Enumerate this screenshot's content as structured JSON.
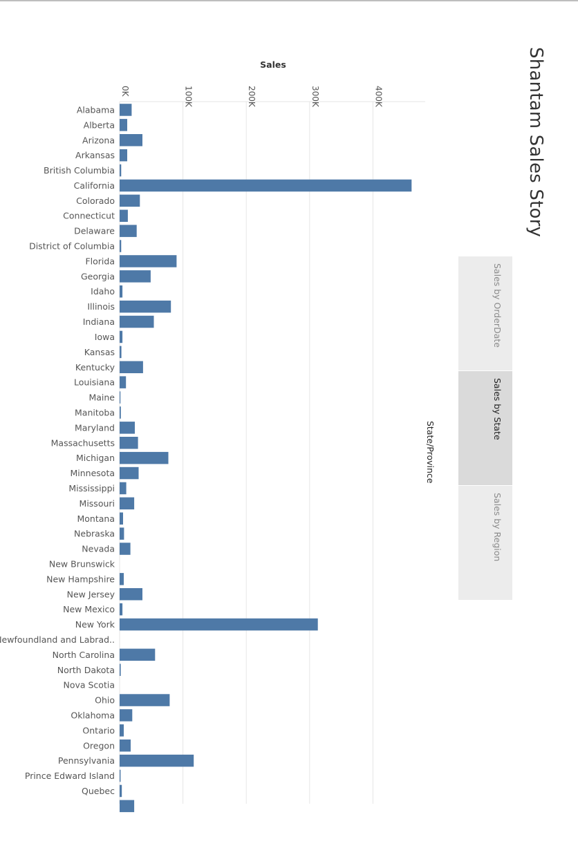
{
  "story": {
    "title": "Shantam Sales Story",
    "tabs": [
      {
        "label": "Sales by OrderDate",
        "active": false
      },
      {
        "label": "Sales by State",
        "active": true
      },
      {
        "label": "Sales by Region",
        "active": false
      }
    ]
  },
  "colors": {
    "bar": "#4e79a7",
    "gridline": "#e6e6e6",
    "text": "#555555"
  },
  "chart_data": {
    "type": "bar",
    "orientation": "horizontal",
    "xlabel": "Sales",
    "ylabel": "State/Province",
    "xlim": [
      0,
      480000
    ],
    "xticks": [
      {
        "value": 0,
        "label": "0K"
      },
      {
        "value": 100000,
        "label": "100K"
      },
      {
        "value": 200000,
        "label": "200K"
      },
      {
        "value": 300000,
        "label": "300K"
      },
      {
        "value": 400000,
        "label": "400K"
      }
    ],
    "grid": true,
    "categories": [
      "Alabama",
      "Alberta",
      "Arizona",
      "Arkansas",
      "British Columbia",
      "California",
      "Colorado",
      "Connecticut",
      "Delaware",
      "District of Columbia",
      "Florida",
      "Georgia",
      "Idaho",
      "Illinois",
      "Indiana",
      "Iowa",
      "Kansas",
      "Kentucky",
      "Louisiana",
      "Maine",
      "Manitoba",
      "Maryland",
      "Massachusetts",
      "Michigan",
      "Minnesota",
      "Mississippi",
      "Missouri",
      "Montana",
      "Nebraska",
      "Nevada",
      "New Brunswick",
      "New Hampshire",
      "New Jersey",
      "New Mexico",
      "New York",
      "Newfoundland and Labrad..",
      "North Carolina",
      "North Dakota",
      "Nova Scotia",
      "Ohio",
      "Oklahoma",
      "Ontario",
      "Oregon",
      "Pennsylvania",
      "Prince Edward Island",
      "Quebec",
      ""
    ],
    "values": [
      19000,
      12000,
      36000,
      12000,
      2500,
      461000,
      32000,
      13000,
      27000,
      2500,
      90000,
      49000,
      4500,
      81000,
      54000,
      4500,
      2800,
      37000,
      10000,
      1300,
      2000,
      24000,
      29000,
      77000,
      30000,
      10500,
      23000,
      5500,
      7000,
      17000,
      0,
      6500,
      36000,
      4500,
      313000,
      0,
      56000,
      1800,
      0,
      79000,
      20000,
      6500,
      17500,
      117000,
      1500,
      3500,
      23000
    ]
  }
}
